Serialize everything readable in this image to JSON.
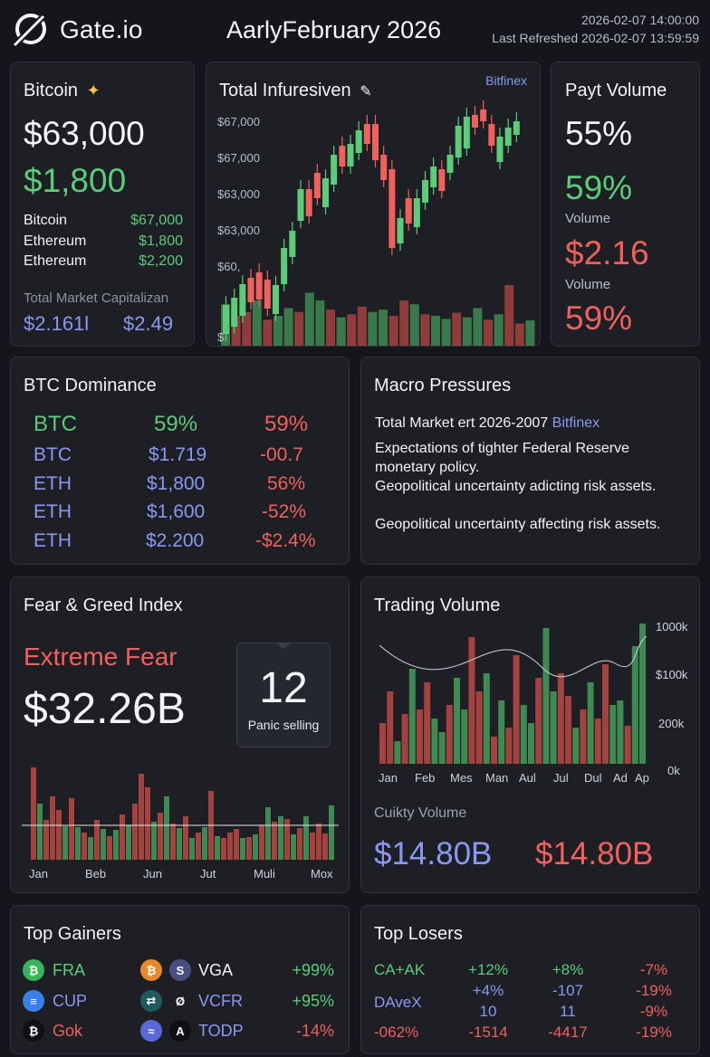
{
  "header": {
    "logo_text": "Gate.io",
    "title": "AarlyFebruary 2026",
    "timestamp": "2026-02-07 14:00:00",
    "refreshed": "Last Refreshed 2026-02-07 13:59:59"
  },
  "bitcoin_card": {
    "title": "Bitcoin",
    "title_icon": "sparkle-icon",
    "price": "$63,000",
    "change": "$1,800",
    "rows": [
      {
        "name": "Bitcoin",
        "value": "$67,000"
      },
      {
        "name": "Ethereum",
        "value": "$1,800"
      },
      {
        "name": "Ethereum",
        "value": "$2,200"
      }
    ],
    "market_cap_label": "Total Market Capitalizan",
    "market_cap_a": "$2.161l",
    "market_cap_b": "$2.49"
  },
  "candle_card": {
    "title": "Total Infuresiven",
    "title_icon": "pencil-icon",
    "source": "Bitfinex",
    "y_labels": [
      "$67,000",
      "$67,000",
      "$63,000",
      "$63,000",
      "$60,",
      "$"
    ]
  },
  "pay_card": {
    "title": "Payt Volume",
    "v1": "55%",
    "v2": "59%",
    "label1": "Volume",
    "v3": "$2.16",
    "label2": "Volume",
    "v4": "59%"
  },
  "dominance": {
    "title": "BTC Dominance",
    "rows": [
      {
        "asset": "BTC",
        "value": "59%",
        "change": "59%"
      },
      {
        "asset": "BTC",
        "value": "$1.719",
        "change": "-00.7"
      },
      {
        "asset": "ETH",
        "value": "$1,800",
        "change": "56%"
      },
      {
        "asset": "ETH",
        "value": "$1,600",
        "change": "-52%"
      },
      {
        "asset": "ETH",
        "value": "$2.200",
        "change": "-$2.4%"
      }
    ]
  },
  "macro": {
    "title": "Macro Pressures",
    "subtitle": "Total Market ert 2026-2007",
    "subtitle_source": "Bitfinex",
    "lines": [
      "Expectations of tighter Federal Reserve monetary policy.",
      "Geopolitical uncertainty adicting risk assets.",
      "Geopolitical uncertainty affecting risk assets."
    ]
  },
  "fear_greed": {
    "title": "Fear & Greed Index",
    "state": "Extreme Fear",
    "amount": "$32.26B",
    "index": "12",
    "index_label": "Panic selling",
    "x_labels": [
      "Jan",
      "Beb",
      "Jun",
      "Jut",
      "Muli",
      "Mox"
    ]
  },
  "trading_volume": {
    "title": "Trading Volume",
    "y_labels": [
      "1000k",
      "$100k",
      "200k",
      "0k"
    ],
    "x_labels": [
      "Jan",
      "Feb",
      "Mes",
      "Man",
      "Aul",
      "Jul",
      "Dul",
      "Ad",
      "Ap"
    ],
    "footer_label": "Cuikty Volume",
    "value_a": "$14.80B",
    "value_b": "$14.80B"
  },
  "top_gainers": {
    "title": "Top Gainers",
    "rows": [
      {
        "left_name": "FRA",
        "right_name": "VGA",
        "pct": "+99%",
        "left_icon": "bitcoin-coin-icon",
        "right_icon_a": "bitcoin-coin-icon",
        "right_icon_b": "s-coin-icon"
      },
      {
        "left_name": "CUP",
        "right_name": "VCFR",
        "pct": "+95%",
        "left_icon": "layers-coin-icon",
        "right_icon_a": "swap-coin-icon",
        "right_icon_b": "slash-coin-icon"
      },
      {
        "left_name": "Gok",
        "right_name": "TODP",
        "pct": "-14%",
        "left_icon": "bitcoin-coin-icon",
        "right_icon_a": "wave-coin-icon",
        "right_icon_b": "a-coin-icon"
      }
    ]
  },
  "top_losers": {
    "title": "Top Losers",
    "rows": [
      [
        "CA+AK",
        "+12%",
        "+8%",
        "-7%"
      ],
      [
        "",
        "+4%",
        "-107",
        "-19%"
      ],
      [
        "DAveX",
        "10",
        "11",
        "-9%"
      ],
      [
        "-062%",
        "-1514",
        "-4417",
        "-19%"
      ]
    ]
  },
  "colors": {
    "green": "#5ccb7a",
    "red": "#f0605c",
    "blue": "#8b98f2",
    "bar_green": "#3f8a52",
    "bar_red": "#a4423f"
  }
}
